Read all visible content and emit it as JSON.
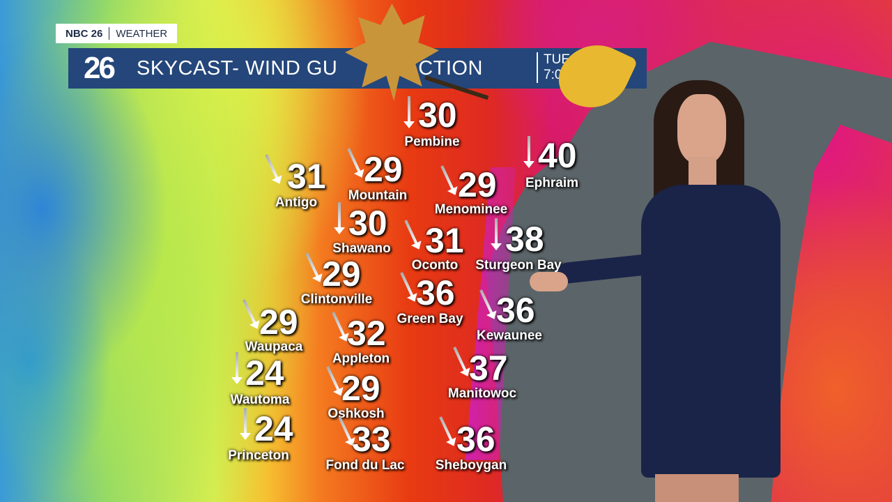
{
  "brand": {
    "network": "NBC 26",
    "section": "WEATHER"
  },
  "banner": {
    "logo": "26",
    "title_left": "SKYCAST- WIND GU",
    "title_right": "ECTION",
    "time_line1": "TUE",
    "time_line2": "7:0"
  },
  "cities": [
    {
      "name": "Pembine",
      "gust": "30"
    },
    {
      "name": "Antigo",
      "gust": "31"
    },
    {
      "name": "Mountain",
      "gust": "29"
    },
    {
      "name": "Menominee",
      "gust": "29"
    },
    {
      "name": "Ephraim",
      "gust": "40"
    },
    {
      "name": "Shawano",
      "gust": "30"
    },
    {
      "name": "Oconto",
      "gust": "31"
    },
    {
      "name": "Sturgeon Bay",
      "gust": "38"
    },
    {
      "name": "Clintonville",
      "gust": "29"
    },
    {
      "name": "Green Bay",
      "gust": "36"
    },
    {
      "name": "Kewaunee",
      "gust": "36"
    },
    {
      "name": "Waupaca",
      "gust": "29"
    },
    {
      "name": "Appleton",
      "gust": "32"
    },
    {
      "name": "Manitowoc",
      "gust": "37"
    },
    {
      "name": "Wautoma",
      "gust": "24"
    },
    {
      "name": "Oshkosh",
      "gust": "29"
    },
    {
      "name": "Princeton",
      "gust": "24"
    },
    {
      "name": "Fond du Lac",
      "gust": "33"
    },
    {
      "name": "Sheboygan",
      "gust": "36"
    }
  ],
  "colors": {
    "banner": "#24467a",
    "lake": "#5b6468"
  }
}
